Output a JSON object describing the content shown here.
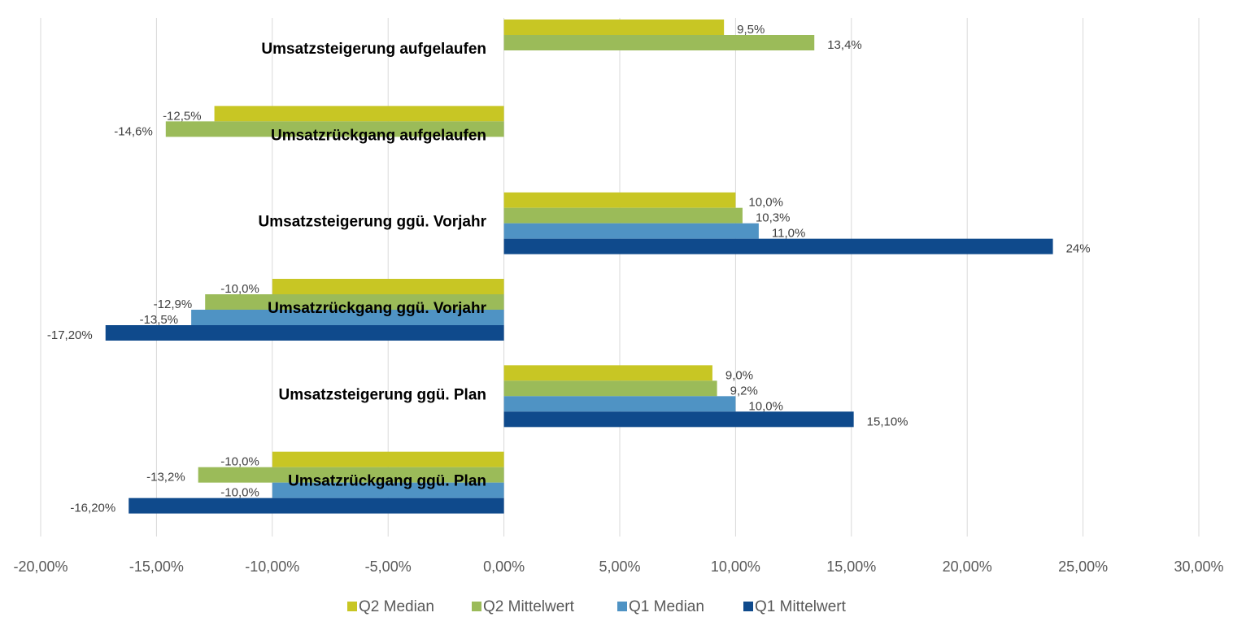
{
  "chart_data": {
    "type": "hbar",
    "categories": [
      "Umsatzsteigerung aufgelaufen",
      "Umsatzrückgang aufgelaufen",
      "Umsatzsteigerung ggü. Vorjahr",
      "Umsatzrückgang ggü. Vorjahr",
      "Umsatzsteigerung ggü. Plan",
      "Umsatzrückgang ggü. Plan"
    ],
    "series": [
      {
        "name": "Q2 Median",
        "color": "#c8c624",
        "values": [
          9.5,
          -12.5,
          10.0,
          -10.0,
          9.0,
          -10.0
        ],
        "value_labels": [
          "9,5%",
          "-12,5%",
          "10,0%",
          "-10,0%",
          "9,0%",
          "-10,0%"
        ]
      },
      {
        "name": "Q2 Mittelwert",
        "color": "#9bbb59",
        "values": [
          13.4,
          -14.6,
          10.3,
          -12.9,
          9.2,
          -13.2
        ],
        "value_labels": [
          "13,4%",
          "-14,6%",
          "10,3%",
          "-12,9%",
          "9,2%",
          "-13,2%"
        ]
      },
      {
        "name": "Q1 Median",
        "color": "#4f93c4",
        "values": [
          null,
          null,
          11.0,
          -13.5,
          10.0,
          -10.0
        ],
        "value_labels": [
          null,
          null,
          "11,0%",
          "-13,5%",
          "10,0%",
          "-10,0%"
        ]
      },
      {
        "name": "Q1 Mittelwert",
        "color": "#0f4a8c",
        "values": [
          null,
          null,
          23.7,
          -17.2,
          15.1,
          -16.2
        ],
        "value_labels": [
          null,
          null,
          "24%",
          "-17,20%",
          "15,10%",
          "-16,20%"
        ]
      }
    ],
    "xlim": [
      -20,
      30
    ],
    "xticks": [
      {
        "value": -20,
        "label": "-20,00%"
      },
      {
        "value": -15,
        "label": "-15,00%"
      },
      {
        "value": -10,
        "label": "-10,00%"
      },
      {
        "value": -5,
        "label": "-5,00%"
      },
      {
        "value": 0,
        "label": "0,00%"
      },
      {
        "value": 5,
        "label": "5,00%"
      },
      {
        "value": 10,
        "label": "10,00%"
      },
      {
        "value": 15,
        "label": "15,00%"
      },
      {
        "value": 20,
        "label": "20,00%"
      },
      {
        "value": 25,
        "label": "25,00%"
      },
      {
        "value": 30,
        "label": "30,00%"
      }
    ],
    "grid": true,
    "legend": "bottom"
  }
}
